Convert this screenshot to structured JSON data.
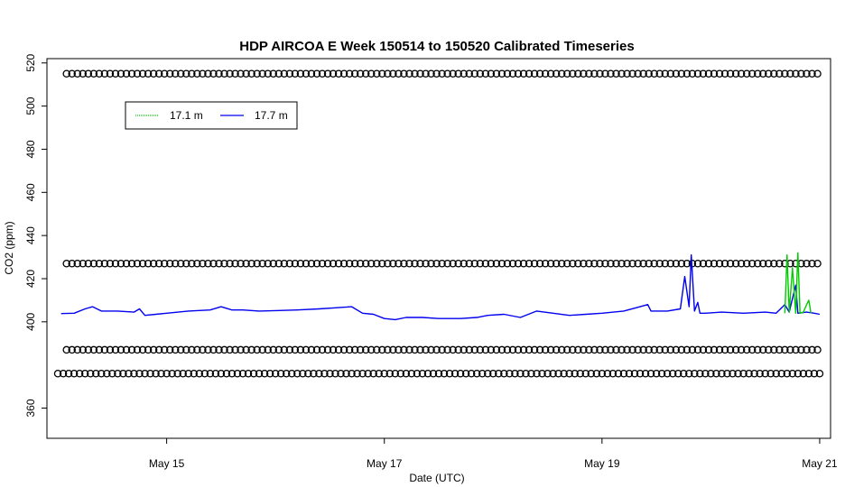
{
  "chart_data": {
    "type": "line",
    "title": "HDP AIRCOA E  Week 150514 to 150520  Calibrated Timeseries",
    "xlabel": "Date (UTC)",
    "ylabel": "CO2 (ppm)",
    "x_ticks": [
      {
        "x": 15,
        "label": "May 15"
      },
      {
        "x": 17,
        "label": "May 17"
      },
      {
        "x": 19,
        "label": "May 19"
      },
      {
        "x": 21,
        "label": "May 21"
      }
    ],
    "y_ticks": [
      360,
      400,
      420,
      440,
      460,
      480,
      500,
      520
    ],
    "xlim": [
      13.9,
      21.1
    ],
    "ylim": [
      346,
      522
    ],
    "grid": false,
    "legend_position": "top-left",
    "legend": [
      {
        "label": "17.1 m",
        "color": "#00cc00",
        "style": "dotted"
      },
      {
        "label": "17.7 m",
        "color": "#0000ee",
        "style": "solid"
      }
    ],
    "series": [
      {
        "name": "17.7 m",
        "color": "#0000ee",
        "x": [
          14.03,
          14.15,
          14.25,
          14.32,
          14.4,
          14.55,
          14.7,
          14.75,
          14.8,
          14.9,
          15.0,
          15.2,
          15.4,
          15.5,
          15.6,
          15.7,
          15.85,
          16.0,
          16.2,
          16.4,
          16.55,
          16.7,
          16.8,
          16.9,
          17.0,
          17.1,
          17.2,
          17.35,
          17.5,
          17.7,
          17.85,
          17.95,
          18.1,
          18.25,
          18.4,
          18.55,
          18.7,
          18.85,
          19.0,
          19.2,
          19.35,
          19.42,
          19.45,
          19.6,
          19.72,
          19.76,
          19.8,
          19.82,
          19.85,
          19.88,
          19.9,
          19.95,
          20.1,
          20.3,
          20.5,
          20.6,
          20.68,
          20.72,
          20.78,
          20.8,
          20.88,
          20.95,
          21.0
        ],
        "y": [
          403.8,
          404,
          406,
          407,
          405,
          405,
          404.5,
          406,
          403,
          403.5,
          404,
          405,
          405.5,
          407,
          405.5,
          405.5,
          405,
          405.2,
          405.5,
          406,
          406.5,
          407,
          404,
          403.5,
          401.5,
          401,
          402,
          402,
          401.5,
          401.5,
          402,
          403,
          403.5,
          402,
          405,
          404,
          403,
          403.5,
          404,
          405,
          407,
          408,
          405,
          405,
          406,
          421,
          407,
          431,
          405,
          409,
          404,
          404,
          404.5,
          404,
          404.5,
          404,
          408,
          404.5,
          417,
          404,
          404.5,
          404,
          403.5
        ]
      },
      {
        "name": "17.1 m",
        "color": "#00cc00",
        "x": [
          20.68,
          20.7,
          20.72,
          20.75,
          20.78,
          20.8,
          20.82,
          20.85,
          20.88,
          20.9,
          20.92
        ],
        "y": [
          404,
          431,
          404.5,
          425,
          404,
          432,
          404,
          404.5,
          408,
          410,
          404
        ]
      }
    ],
    "reference_points": {
      "symbol": "open-circle",
      "color": "#000000",
      "levels": [
        {
          "y": 515,
          "x_start": 14.08
        },
        {
          "y": 427,
          "x_start": 14.08
        },
        {
          "y": 387,
          "x_start": 14.08
        },
        {
          "y": 376,
          "x_start": 14.0
        }
      ],
      "x_end": 21.0,
      "step_days": 0.05
    }
  }
}
